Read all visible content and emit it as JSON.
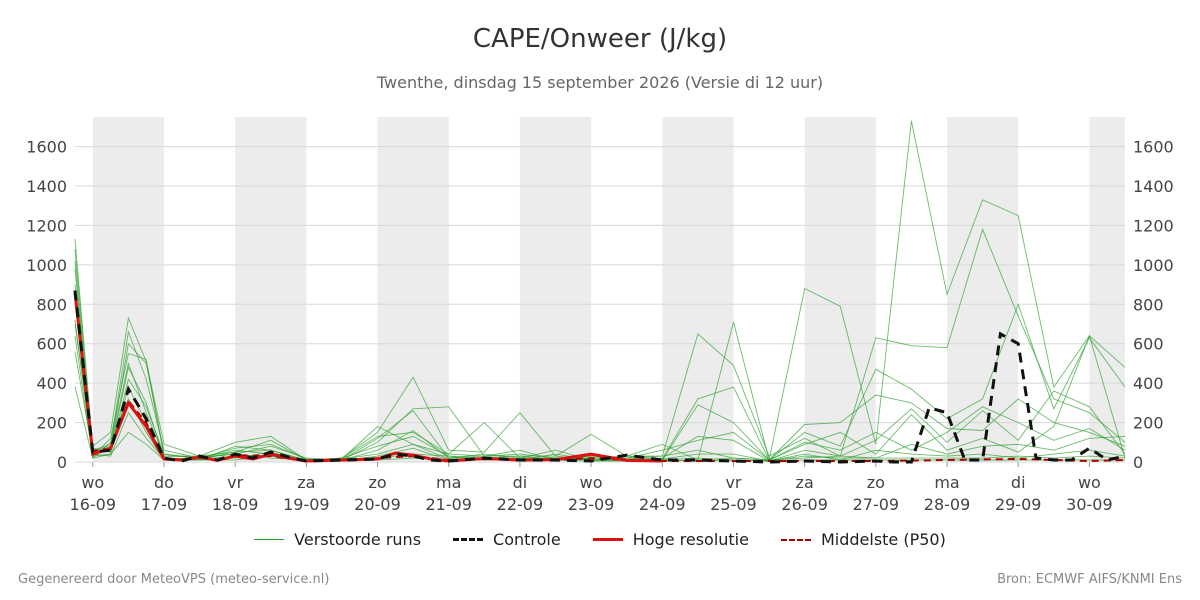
{
  "title": "CAPE/Onweer (J/kg)",
  "subtitle": "Twenthe, dinsdag 15 september 2026 (Versie di 12 uur)",
  "footer_left": "Gegenereerd door MeteoVPS (meteo-service.nl)",
  "footer_right": "Bron: ECMWF AIFS/KNMI Ens",
  "colors": {
    "ensemble": "#2ca02c",
    "control": "#111111",
    "highres": "#dd1111",
    "median": "#aa0000",
    "night_band": "#ececec",
    "grid": "#d8d8d8"
  },
  "legend": [
    {
      "key": "ensemble",
      "label": "Verstoorde runs"
    },
    {
      "key": "control",
      "label": "Controle"
    },
    {
      "key": "highres",
      "label": "Hoge resolutie"
    },
    {
      "key": "median",
      "label": "Middelste (P50)"
    }
  ],
  "chart_data": {
    "type": "line",
    "x_unit": "days from 16-09 00:00",
    "xlim": [
      -0.25,
      14.5
    ],
    "ylim": [
      0,
      1750
    ],
    "yticks": [
      0,
      200,
      400,
      600,
      800,
      1000,
      1200,
      1400,
      1600
    ],
    "grid": true,
    "dual_y_axis": true,
    "legend_position": "bottom",
    "xticks": [
      {
        "x": 0,
        "day": "wo",
        "date": "16-09"
      },
      {
        "x": 1,
        "day": "do",
        "date": "17-09"
      },
      {
        "x": 2,
        "day": "vr",
        "date": "18-09"
      },
      {
        "x": 3,
        "day": "za",
        "date": "19-09"
      },
      {
        "x": 4,
        "day": "zo",
        "date": "20-09"
      },
      {
        "x": 5,
        "day": "ma",
        "date": "21-09"
      },
      {
        "x": 6,
        "day": "di",
        "date": "22-09"
      },
      {
        "x": 7,
        "day": "wo",
        "date": "23-09"
      },
      {
        "x": 8,
        "day": "do",
        "date": "24-09"
      },
      {
        "x": 9,
        "day": "vr",
        "date": "25-09"
      },
      {
        "x": 10,
        "day": "za",
        "date": "26-09"
      },
      {
        "x": 11,
        "day": "zo",
        "date": "27-09"
      },
      {
        "x": 12,
        "day": "ma",
        "date": "28-09"
      },
      {
        "x": 13,
        "day": "di",
        "date": "29-09"
      },
      {
        "x": 14,
        "day": "wo",
        "date": "30-09"
      }
    ],
    "shaded_bands": [
      [
        0,
        1
      ],
      [
        2,
        3
      ],
      [
        4,
        5
      ],
      [
        6,
        7
      ],
      [
        8,
        9
      ],
      [
        10,
        11
      ],
      [
        12,
        13
      ],
      [
        14,
        14.5
      ]
    ],
    "series": [
      {
        "name": "Controle",
        "style": "control",
        "x": [
          -0.25,
          0,
          0.25,
          0.5,
          0.75,
          1,
          1.25,
          1.5,
          1.75,
          2,
          2.25,
          2.5,
          2.75,
          3,
          3.5,
          4,
          4.25,
          4.5,
          4.75,
          5,
          5.5,
          6,
          6.5,
          7,
          7.5,
          8,
          8.5,
          9,
          9.5,
          10,
          10.5,
          11,
          11.25,
          11.5,
          11.75,
          12,
          12.25,
          12.5,
          12.75,
          13,
          13.25,
          13.5,
          13.75,
          14,
          14.25,
          14.5
        ],
        "y": [
          870,
          50,
          60,
          370,
          220,
          20,
          5,
          30,
          10,
          40,
          20,
          50,
          25,
          5,
          10,
          15,
          40,
          30,
          10,
          5,
          20,
          10,
          10,
          5,
          35,
          10,
          10,
          5,
          0,
          5,
          0,
          5,
          0,
          0,
          275,
          250,
          10,
          10,
          650,
          600,
          20,
          10,
          10,
          70,
          10,
          30
        ]
      },
      {
        "name": "Hoge resolutie",
        "style": "highres",
        "x": [
          -0.25,
          0,
          0.25,
          0.5,
          0.75,
          1,
          1.25,
          1.5,
          1.75,
          2,
          2.25,
          2.5,
          2.75,
          3,
          3.5,
          4,
          4.25,
          4.5,
          4.75,
          5,
          5.5,
          6,
          6.5,
          7,
          7.5,
          8
        ],
        "y": [
          860,
          40,
          70,
          300,
          180,
          15,
          10,
          25,
          8,
          30,
          15,
          40,
          20,
          5,
          10,
          15,
          45,
          35,
          15,
          5,
          18,
          10,
          12,
          40,
          8,
          5
        ]
      },
      {
        "name": "Middelste (P50)",
        "style": "median",
        "x": [
          -0.25,
          0,
          0.25,
          0.5,
          0.75,
          1,
          1.25,
          1.5,
          1.75,
          2,
          2.5,
          3,
          3.5,
          4,
          4.5,
          5,
          5.5,
          6,
          6.5,
          7,
          7.5,
          8,
          9,
          10,
          11,
          12,
          13,
          14,
          14.5
        ],
        "y": [
          850,
          55,
          70,
          310,
          200,
          20,
          10,
          25,
          10,
          35,
          30,
          5,
          10,
          20,
          30,
          10,
          15,
          10,
          10,
          20,
          10,
          5,
          5,
          5,
          5,
          10,
          15,
          5,
          10
        ]
      },
      {
        "name": "Verstoorde runs",
        "style": "ensemble",
        "x": [
          -0.25,
          0,
          0.25,
          0.5,
          0.75,
          1,
          1.5,
          2,
          2.5,
          3,
          3.5,
          4,
          4.5,
          5,
          5.5,
          6,
          6.5,
          7,
          7.5,
          8,
          8.5,
          9,
          9.5,
          10,
          10.5,
          11,
          11.5,
          12,
          12.5,
          13,
          13.5,
          14,
          14.5
        ],
        "y": [
          1130,
          80,
          150,
          730,
          510,
          90,
          30,
          100,
          130,
          10,
          20,
          150,
          430,
          60,
          50,
          250,
          30,
          140,
          30,
          90,
          10,
          710,
          10,
          880,
          790,
          90,
          1730,
          850,
          1330,
          1250,
          380,
          640,
          480
        ]
      },
      {
        "name": "Verstoorde runs",
        "style": "ensemble",
        "x": [
          -0.25,
          0,
          0.25,
          0.5,
          0.75,
          1,
          1.5,
          2,
          2.5,
          3,
          3.5,
          4,
          4.5,
          5,
          5.5,
          6,
          6.5,
          7,
          7.5,
          8,
          8.5,
          9,
          9.5,
          10,
          10.5,
          11,
          11.5,
          12,
          12.5,
          13,
          13.5,
          14,
          14.5
        ],
        "y": [
          1080,
          60,
          90,
          660,
          420,
          60,
          20,
          70,
          90,
          15,
          10,
          100,
          270,
          280,
          30,
          40,
          20,
          30,
          20,
          30,
          650,
          490,
          30,
          120,
          30,
          630,
          590,
          580,
          1180,
          740,
          320,
          250,
          100
        ]
      },
      {
        "name": "Verstoorde runs",
        "style": "ensemble",
        "x": [
          -0.25,
          0,
          0.25,
          0.5,
          0.75,
          1,
          1.5,
          2,
          2.5,
          3,
          3.5,
          4,
          4.5,
          5,
          5.5,
          6,
          6.5,
          7,
          7.5,
          8,
          8.5,
          9,
          9.5,
          10,
          10.5,
          11,
          11.5,
          12,
          12.5,
          13,
          13.5,
          14,
          14.5
        ],
        "y": [
          1020,
          40,
          70,
          600,
          500,
          40,
          15,
          50,
          60,
          10,
          15,
          180,
          90,
          40,
          200,
          20,
          60,
          10,
          30,
          15,
          320,
          380,
          10,
          150,
          80,
          470,
          370,
          220,
          320,
          800,
          270,
          630,
          380
        ]
      },
      {
        "name": "Verstoorde runs",
        "style": "ensemble",
        "x": [
          -0.25,
          0,
          0.25,
          0.5,
          0.75,
          1,
          1.5,
          2,
          2.5,
          3,
          3.5,
          4,
          4.5,
          5,
          5.5,
          6,
          6.5,
          7,
          7.5,
          8,
          8.5,
          9,
          9.5,
          10,
          10.5,
          11,
          11.5,
          12,
          12.5,
          13,
          13.5,
          14,
          14.5
        ],
        "y": [
          980,
          30,
          120,
          550,
          520,
          30,
          25,
          40,
          80,
          20,
          10,
          120,
          260,
          20,
          30,
          60,
          10,
          20,
          20,
          10,
          290,
          200,
          10,
          190,
          200,
          340,
          300,
          170,
          160,
          320,
          200,
          150,
          80
        ]
      },
      {
        "name": "Verstoorde runs",
        "style": "ensemble",
        "x": [
          -0.25,
          0,
          0.25,
          0.5,
          0.75,
          1,
          1.5,
          2,
          2.5,
          3,
          3.5,
          4,
          4.5,
          5,
          5.5,
          6,
          6.5,
          7,
          7.5,
          8,
          8.5,
          9,
          9.5,
          10,
          10.5,
          11,
          11.5,
          12,
          12.5,
          13,
          13.5,
          14,
          14.5
        ],
        "y": [
          900,
          50,
          60,
          480,
          300,
          20,
          10,
          80,
          60,
          5,
          20,
          80,
          130,
          30,
          20,
          30,
          30,
          10,
          10,
          20,
          130,
          110,
          5,
          60,
          30,
          110,
          270,
          100,
          260,
          110,
          360,
          280,
          40
        ]
      },
      {
        "name": "Verstoorde runs",
        "style": "ensemble",
        "x": [
          -0.25,
          0,
          0.25,
          0.5,
          0.75,
          1,
          1.5,
          2,
          2.5,
          3,
          3.5,
          4,
          4.5,
          5,
          5.5,
          6,
          6.5,
          7,
          7.5,
          8,
          8.5,
          9,
          9.5,
          10,
          10.5,
          11,
          11.5,
          12,
          12.5,
          13,
          13.5,
          14,
          14.5
        ],
        "y": [
          820,
          70,
          50,
          420,
          280,
          40,
          20,
          60,
          40,
          10,
          10,
          60,
          160,
          20,
          40,
          20,
          20,
          20,
          30,
          30,
          60,
          20,
          10,
          90,
          150,
          40,
          240,
          60,
          120,
          50,
          180,
          640,
          20
        ]
      },
      {
        "name": "Verstoorde runs",
        "style": "ensemble",
        "x": [
          -0.25,
          0,
          0.25,
          0.5,
          0.75,
          1,
          1.5,
          2,
          2.5,
          3,
          3.5,
          4,
          4.5,
          5,
          5.5,
          6,
          6.5,
          7,
          7.5,
          8,
          8.5,
          9,
          9.5,
          10,
          10.5,
          11,
          11.5,
          12,
          12.5,
          13,
          13.5,
          14,
          14.5
        ],
        "y": [
          720,
          30,
          40,
          380,
          200,
          20,
          15,
          30,
          30,
          5,
          15,
          40,
          90,
          15,
          20,
          10,
          40,
          10,
          10,
          15,
          40,
          40,
          5,
          30,
          20,
          20,
          90,
          40,
          80,
          90,
          60,
          120,
          130
        ]
      },
      {
        "name": "Verstoorde runs",
        "style": "ensemble",
        "x": [
          -0.25,
          0,
          0.25,
          0.5,
          0.75,
          1,
          1.5,
          2,
          2.5,
          3,
          3.5,
          4,
          4.5,
          5,
          5.5,
          6,
          6.5,
          7,
          7.5,
          8,
          8.5,
          9,
          9.5,
          10,
          10.5,
          11,
          11.5,
          12,
          12.5,
          13,
          13.5,
          14,
          14.5
        ],
        "y": [
          640,
          20,
          100,
          320,
          150,
          10,
          10,
          20,
          50,
          5,
          5,
          30,
          70,
          10,
          10,
          20,
          10,
          30,
          20,
          10,
          20,
          10,
          5,
          40,
          10,
          60,
          40,
          30,
          40,
          20,
          40,
          60,
          30
        ]
      },
      {
        "name": "Verstoorde runs",
        "style": "ensemble",
        "x": [
          -0.25,
          0,
          0.25,
          0.5,
          0.75,
          1,
          1.5,
          2,
          2.5,
          3,
          3.5,
          4,
          4.5,
          5,
          5.5,
          6,
          6.5,
          7,
          7.5,
          8,
          8.5,
          9,
          9.5,
          10,
          10.5,
          11,
          11.5,
          12,
          12.5,
          13,
          13.5,
          14,
          14.5
        ],
        "y": [
          560,
          40,
          30,
          250,
          120,
          15,
          20,
          40,
          20,
          10,
          10,
          20,
          40,
          30,
          10,
          10,
          20,
          10,
          10,
          5,
          10,
          20,
          10,
          20,
          30,
          20,
          20,
          20,
          20,
          30,
          20,
          30,
          20
        ]
      },
      {
        "name": "Verstoorde runs",
        "style": "ensemble",
        "x": [
          -0.25,
          0,
          0.25,
          0.5,
          0.75,
          1,
          1.5,
          2,
          2.5,
          3,
          3.5,
          4,
          4.5,
          5,
          5.5,
          6,
          6.5,
          7,
          7.5,
          8,
          8.5,
          9,
          9.5,
          10,
          10.5,
          11,
          11.5,
          12,
          12.5,
          13,
          13.5,
          14,
          14.5
        ],
        "y": [
          380,
          20,
          40,
          150,
          90,
          10,
          10,
          10,
          30,
          5,
          5,
          10,
          20,
          10,
          20,
          5,
          10,
          5,
          5,
          10,
          5,
          10,
          5,
          10,
          10,
          10,
          10,
          10,
          10,
          10,
          10,
          10,
          10
        ]
      },
      {
        "name": "Verstoorde runs",
        "style": "ensemble",
        "x": [
          -0.25,
          0,
          0.25,
          0.5,
          0.75,
          1,
          1.5,
          2,
          2.5,
          3,
          3.5,
          4,
          4.5,
          5,
          5.5,
          6,
          6.5,
          7,
          7.5,
          8,
          8.5,
          9,
          9.5,
          10,
          10.5,
          11,
          11.5,
          12,
          12.5,
          13,
          13.5,
          14,
          14.5
        ],
        "y": [
          700,
          60,
          80,
          500,
          250,
          30,
          30,
          50,
          110,
          10,
          20,
          130,
          150,
          40,
          30,
          30,
          10,
          20,
          20,
          60,
          110,
          150,
          10,
          100,
          60,
          150,
          60,
          150,
          280,
          200,
          110,
          170,
          60
        ]
      }
    ]
  }
}
